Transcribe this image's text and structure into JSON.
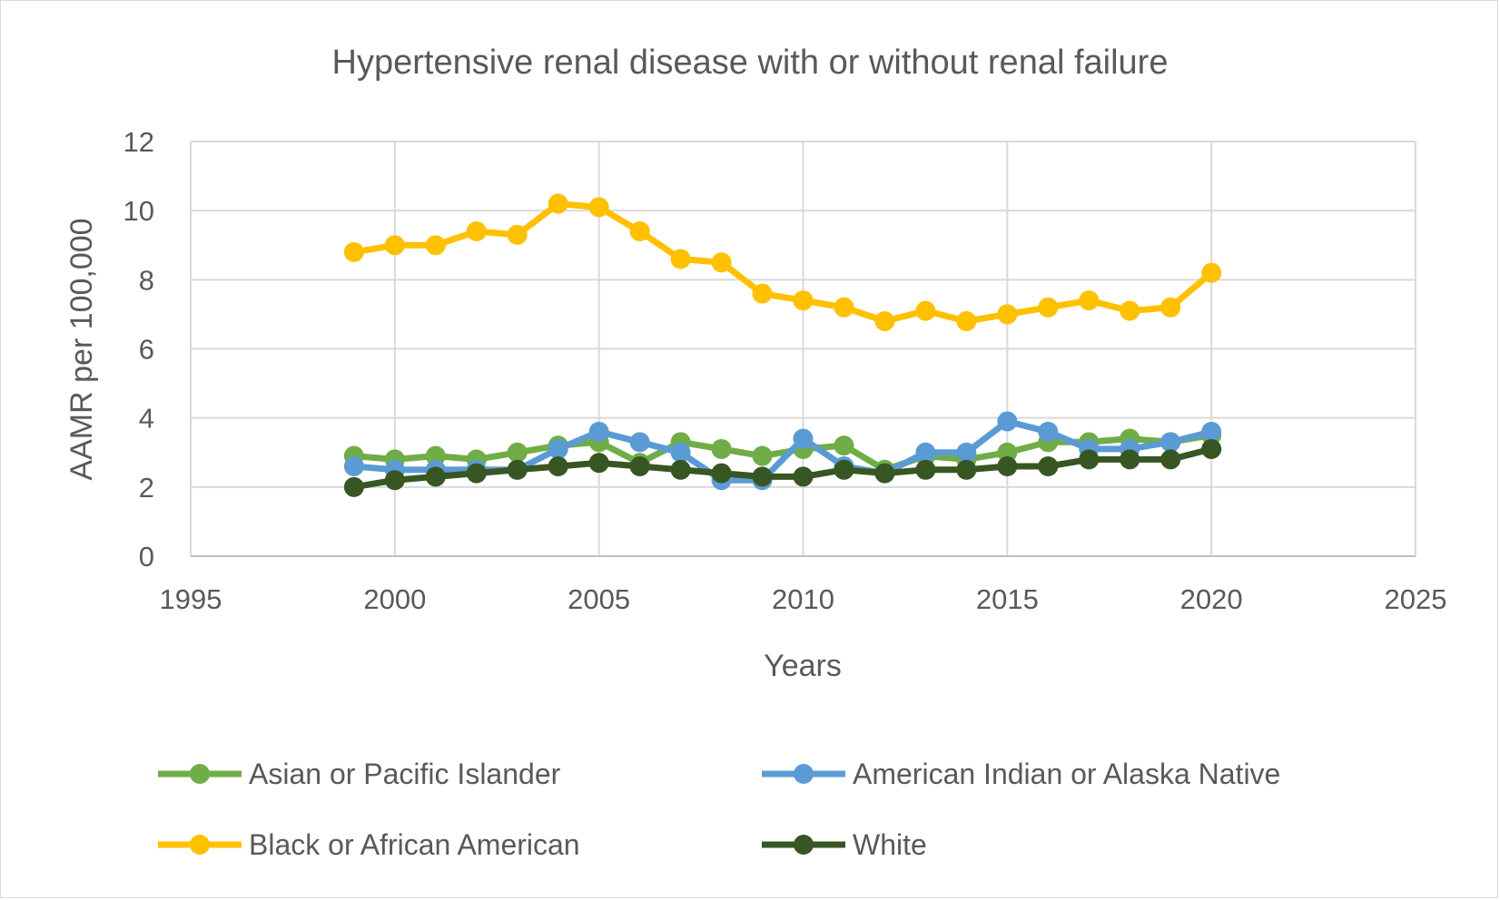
{
  "chart_data": {
    "type": "line",
    "title": "Hypertensive renal disease with or without renal failure",
    "xlabel": "Years",
    "ylabel": "AAMR per 100,000",
    "xlim": [
      1995,
      2025
    ],
    "ylim": [
      0,
      12
    ],
    "x_ticks": [
      1995,
      2000,
      2005,
      2010,
      2015,
      2020,
      2025
    ],
    "y_ticks": [
      0,
      2,
      4,
      6,
      8,
      10,
      12
    ],
    "grid": true,
    "legend_position": "bottom",
    "x": [
      1999,
      2000,
      2001,
      2002,
      2003,
      2004,
      2005,
      2006,
      2007,
      2008,
      2009,
      2010,
      2011,
      2012,
      2013,
      2014,
      2015,
      2016,
      2017,
      2018,
      2019,
      2020
    ],
    "series": [
      {
        "name": "Asian or Pacific Islander",
        "color": "#70ad47",
        "values": [
          2.9,
          2.8,
          2.9,
          2.8,
          3.0,
          3.2,
          3.3,
          2.7,
          3.3,
          3.1,
          2.9,
          3.1,
          3.2,
          2.5,
          2.9,
          2.8,
          3.0,
          3.3,
          3.3,
          3.4,
          3.3,
          3.5
        ]
      },
      {
        "name": "American Indian or Alaska Native",
        "color": "#5b9bd5",
        "values": [
          2.6,
          2.5,
          2.5,
          2.5,
          2.5,
          3.1,
          3.6,
          3.3,
          3.0,
          2.2,
          2.2,
          3.4,
          2.6,
          2.4,
          3.0,
          3.0,
          3.9,
          3.6,
          3.1,
          3.1,
          3.3,
          3.6
        ]
      },
      {
        "name": "Black or African American",
        "color": "#ffc000",
        "values": [
          8.8,
          9.0,
          9.0,
          9.4,
          9.3,
          10.2,
          10.1,
          9.4,
          8.6,
          8.5,
          7.6,
          7.4,
          7.2,
          6.8,
          7.1,
          6.8,
          7.0,
          7.2,
          7.4,
          7.1,
          7.2,
          8.2
        ]
      },
      {
        "name": "White",
        "color": "#375623",
        "values": [
          2.0,
          2.2,
          2.3,
          2.4,
          2.5,
          2.6,
          2.7,
          2.6,
          2.5,
          2.4,
          2.3,
          2.3,
          2.5,
          2.4,
          2.5,
          2.5,
          2.6,
          2.6,
          2.8,
          2.8,
          2.8,
          3.1
        ]
      }
    ]
  },
  "colors": {
    "grid": "#d9d9d9",
    "axis": "#bfbfbf",
    "text": "#595959"
  }
}
